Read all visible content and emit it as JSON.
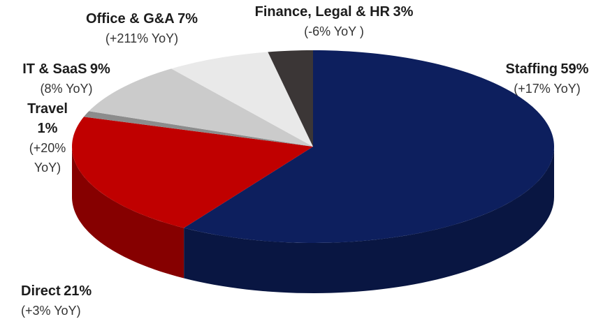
{
  "chart_data": {
    "type": "pie",
    "categories": [
      "Staffing",
      "Direct",
      "Travel",
      "IT & SaaS",
      "Office & G&A",
      "Finance, Legal & HR"
    ],
    "values": [
      59,
      21,
      1,
      9,
      7,
      3
    ],
    "value_labels": [
      "59%",
      "21%",
      "1%",
      "9%",
      "7%",
      "3%"
    ],
    "annotations": [
      "(+17% YoY)",
      "(+3% YoY)",
      "(+20% YoY)",
      "(8% YoY)",
      "(+211% YoY)",
      "(-6% YoY )"
    ],
    "colors": [
      "#0d1f5e",
      "#c00000",
      "#8c8c8c",
      "#cbcbcb",
      "#e9e9e9",
      "#3b3636"
    ]
  }
}
